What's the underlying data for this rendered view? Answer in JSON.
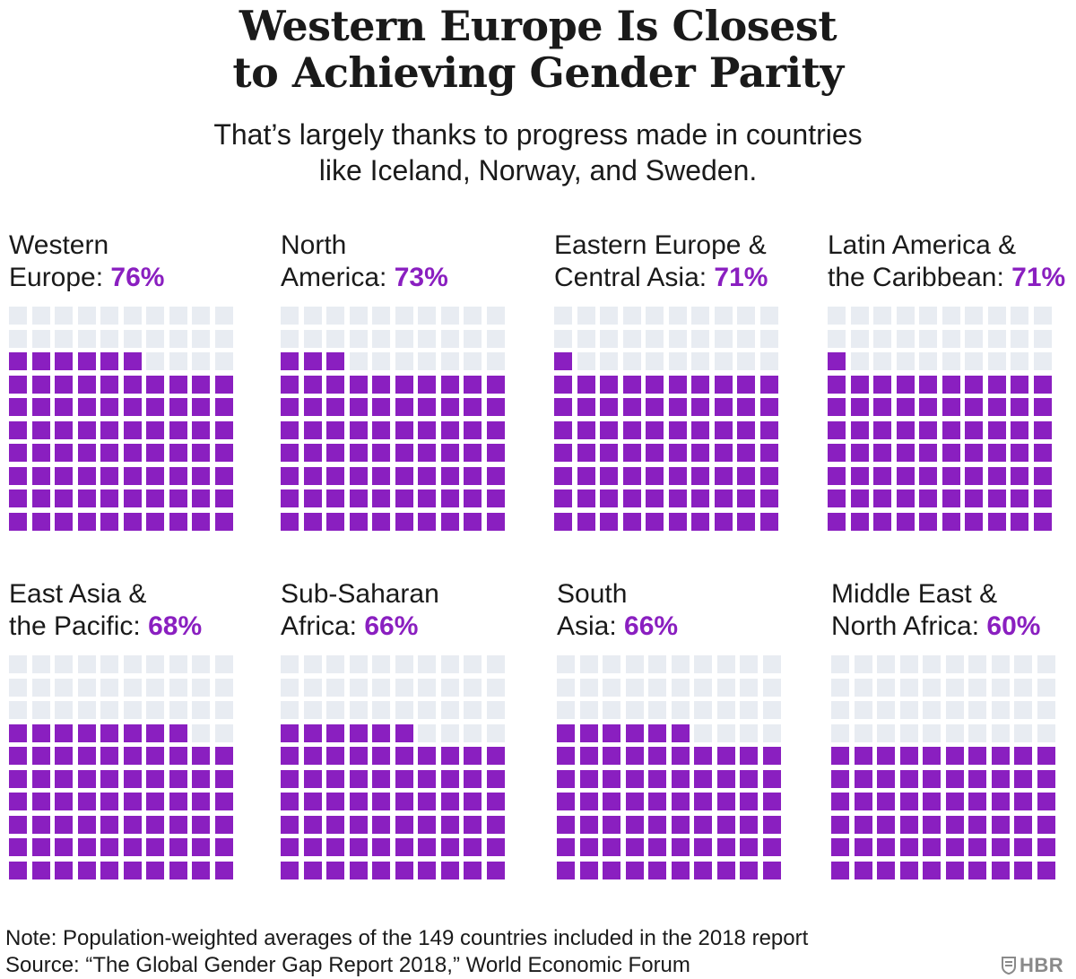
{
  "title": {
    "line1": "Western Europe Is Closest",
    "line2": "to Achieving Gender Parity"
  },
  "subtitle": {
    "line1": "That’s largely thanks to progress made in countries",
    "line2": "like Iceland, Norway, and Sweden."
  },
  "colors": {
    "filled": "#8a1fc0",
    "empty": "#e8ecf2",
    "accent_text": "#8a1fc0",
    "logo": "#8a8a8a"
  },
  "chart_data": {
    "type": "waffle",
    "grid": "10x10",
    "unit": "percent of gender gap closed",
    "panels": [
      {
        "line1": "Western",
        "line2": "Europe: ",
        "value_label": "76%",
        "value": 76
      },
      {
        "line1": "North",
        "line2": "America: ",
        "value_label": "73%",
        "value": 73
      },
      {
        "line1": "Eastern Europe & ",
        "line2": "Central Asia: ",
        "value_label": "71%",
        "value": 71
      },
      {
        "line1": "Latin America &",
        "line2": "the Caribbean: ",
        "value_label": "71%",
        "value": 71
      },
      {
        "line1": "East Asia &",
        "line2": "the Pacific: ",
        "value_label": "68%",
        "value": 68
      },
      {
        "line1": "Sub-Saharan",
        "line2": "Africa: ",
        "value_label": "66%",
        "value": 66
      },
      {
        "line1": "South",
        "line2": "Asia: ",
        "value_label": "66%",
        "value": 66
      },
      {
        "line1": "Middle East &",
        "line2": "North Africa: ",
        "value_label": "60%",
        "value": 60
      }
    ]
  },
  "notes": {
    "note": "Note: Population-weighted averages of the 149 countries included in the 2018 report",
    "source": "Source: “The Global Gender Gap Report 2018,” World Economic Forum"
  },
  "logo": {
    "text": "HBR",
    "icon": "shield-icon"
  }
}
